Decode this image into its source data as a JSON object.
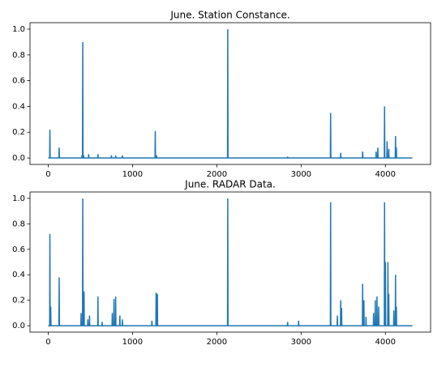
{
  "chart_data": [
    {
      "type": "line",
      "title": "June. Station Constance.",
      "x": [
        0,
        17,
        20,
        23,
        127,
        130,
        133,
        397,
        400,
        403,
        407,
        410,
        413,
        417,
        420,
        423,
        477,
        480,
        483,
        587,
        590,
        593,
        747,
        750,
        753,
        797,
        800,
        803,
        877,
        880,
        883,
        1267,
        1270,
        1273,
        1282,
        1285,
        1288,
        2127,
        2130,
        2133,
        2837,
        2840,
        2843,
        3347,
        3350,
        3353,
        3467,
        3470,
        3473,
        3727,
        3730,
        3733,
        3887,
        3890,
        3893,
        3907,
        3910,
        3913,
        3987,
        3990,
        3993,
        4017,
        4020,
        4023,
        4037,
        4040,
        4043,
        4117,
        4120,
        4123,
        4127,
        4130,
        4133,
        4320
      ],
      "series": [
        {
          "color": "#1f77b4",
          "values": [
            0,
            0,
            0.22,
            0,
            0,
            0.08,
            0,
            0,
            0.02,
            0,
            0,
            0.9,
            0,
            0,
            0.02,
            0,
            0,
            0.03,
            0,
            0,
            0.03,
            0,
            0,
            0.02,
            0,
            0,
            0.02,
            0,
            0,
            0.02,
            0,
            0,
            0.21,
            0,
            0,
            0.02,
            0,
            0,
            1.0,
            0,
            0,
            0.01,
            0,
            0,
            0.35,
            0,
            0,
            0.04,
            0,
            0,
            0.05,
            0,
            0,
            0.05,
            0,
            0,
            0.08,
            0,
            0,
            0.4,
            0,
            0,
            0.13,
            0,
            0,
            0.07,
            0,
            0,
            0.17,
            0,
            0,
            0.08,
            0,
            0
          ]
        }
      ],
      "xlim": [
        -216,
        4536
      ],
      "xticks": [
        0,
        1000,
        2000,
        3000,
        4000
      ],
      "ylim": [
        -0.05,
        1.05
      ],
      "yticks": [
        {
          "value": 0,
          "label": "0.0"
        },
        {
          "value": 0.2,
          "label": "0.2"
        },
        {
          "value": 0.4,
          "label": "0.4"
        },
        {
          "value": 0.6,
          "label": "0.6"
        },
        {
          "value": 0.8,
          "label": "0.8"
        },
        {
          "value": 1.0,
          "label": "1.0"
        }
      ]
    },
    {
      "type": "line",
      "title": "June. RADAR Data.",
      "x": [
        0,
        17,
        20,
        23,
        27,
        30,
        33,
        127,
        130,
        133,
        387,
        390,
        393,
        407,
        410,
        413,
        422,
        425,
        428,
        467,
        470,
        473,
        487,
        490,
        493,
        587,
        590,
        593,
        637,
        640,
        643,
        757,
        760,
        763,
        777,
        780,
        783,
        797,
        800,
        803,
        847,
        850,
        853,
        877,
        880,
        883,
        1227,
        1230,
        1233,
        1277,
        1280,
        1283,
        1292,
        1295,
        1298,
        2127,
        2130,
        2133,
        2837,
        2840,
        2843,
        2967,
        2970,
        2973,
        3347,
        3350,
        3353,
        3427,
        3430,
        3433,
        3467,
        3470,
        3473,
        3477,
        3480,
        3483,
        3727,
        3730,
        3733,
        3742,
        3745,
        3748,
        3767,
        3770,
        3773,
        3857,
        3860,
        3863,
        3877,
        3880,
        3883,
        3897,
        3900,
        3903,
        3917,
        3920,
        3923,
        3987,
        3990,
        3993,
        3997,
        4000,
        4003,
        4027,
        4030,
        4033,
        4037,
        4040,
        4043,
        4097,
        4100,
        4103,
        4117,
        4120,
        4123,
        4127,
        4130,
        4133,
        4320
      ],
      "series": [
        {
          "color": "#1f77b4",
          "values": [
            0,
            0,
            0.72,
            0,
            0,
            0.15,
            0,
            0,
            0.38,
            0,
            0,
            0.1,
            0,
            0,
            1.0,
            0,
            0,
            0.27,
            0,
            0,
            0.05,
            0,
            0,
            0.08,
            0,
            0,
            0.23,
            0,
            0,
            0.03,
            0,
            0,
            0.1,
            0,
            0,
            0.21,
            0,
            0,
            0.23,
            0,
            0,
            0.08,
            0,
            0,
            0.05,
            0,
            0,
            0.04,
            0,
            0,
            0.26,
            0,
            0,
            0.25,
            0,
            0,
            1.0,
            0,
            0,
            0.03,
            0,
            0,
            0.04,
            0,
            0,
            0.97,
            0,
            0,
            0.08,
            0,
            0,
            0.2,
            0,
            0,
            0.14,
            0,
            0,
            0.33,
            0,
            0,
            0.2,
            0,
            0,
            0.07,
            0,
            0,
            0.1,
            0,
            0,
            0.2,
            0,
            0,
            0.23,
            0,
            0,
            0.15,
            0,
            0,
            0.97,
            0,
            0,
            0.5,
            0,
            0,
            0.5,
            0,
            0,
            0.25,
            0,
            0,
            0.12,
            0,
            0,
            0.4,
            0,
            0,
            0.15,
            0,
            0
          ]
        }
      ],
      "xlim": [
        -216,
        4536
      ],
      "xticks": [
        0,
        1000,
        2000,
        3000,
        4000
      ],
      "ylim": [
        -0.05,
        1.05
      ],
      "yticks": [
        {
          "value": 0,
          "label": "0.0"
        },
        {
          "value": 0.2,
          "label": "0.2"
        },
        {
          "value": 0.4,
          "label": "0.4"
        },
        {
          "value": 0.6,
          "label": "0.6"
        },
        {
          "value": 0.8,
          "label": "0.8"
        },
        {
          "value": 1.0,
          "label": "1.0"
        }
      ]
    }
  ]
}
